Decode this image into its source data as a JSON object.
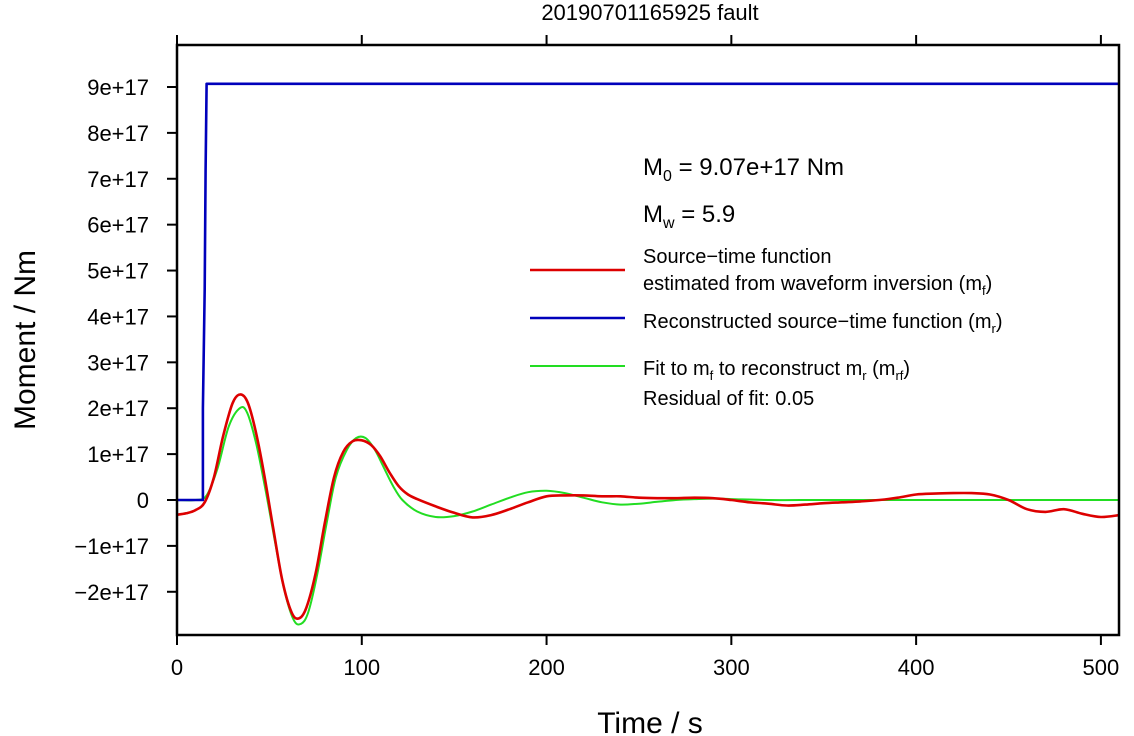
{
  "chart_data": {
    "type": "line",
    "title": "20190701165925 fault",
    "xlabel": "Time / s",
    "ylabel": "Moment / Nm",
    "xlim": [
      0,
      510
    ],
    "ylim": [
      -2.95e+17,
      9.95e+17
    ],
    "x_ticks": [
      0,
      100,
      200,
      300,
      400,
      500
    ],
    "x_tick_labels": [
      "0",
      "100",
      "200",
      "300",
      "400",
      "500"
    ],
    "y_ticks": [
      -2e+17,
      -1e+17,
      0,
      1e+17,
      2e+17,
      3e+17,
      4e+17,
      5e+17,
      6e+17,
      7e+17,
      8e+17,
      9e+17
    ],
    "y_tick_labels": [
      "−2e+17",
      "−1e+17",
      "0",
      "1e+17",
      "2e+17",
      "3e+17",
      "4e+17",
      "5e+17",
      "6e+17",
      "7e+17",
      "8e+17",
      "9e+17"
    ],
    "grid": false,
    "legend_position": "right",
    "annotations": {
      "m0": {
        "symbol": "M",
        "sub": "0",
        "text": " = 9.07e+17 Nm"
      },
      "mw": {
        "symbol": "M",
        "sub": "w",
        "text": " = 5.9"
      },
      "residual": "Residual of fit: 0.05"
    },
    "series": [
      {
        "key": "mf",
        "color": "#dd0000",
        "legend_lines": [
          {
            "text": "Source−time function"
          },
          {
            "text": "estimated from waveform inversion (m",
            "sub": "f",
            "after": ")"
          }
        ],
        "points": [
          [
            0,
            -0.32
          ],
          [
            5,
            -0.29
          ],
          [
            10,
            -0.22
          ],
          [
            15,
            -0.05
          ],
          [
            20,
            0.5
          ],
          [
            25,
            1.4
          ],
          [
            30,
            2.1
          ],
          [
            34,
            2.3
          ],
          [
            38,
            2.15
          ],
          [
            42,
            1.6
          ],
          [
            47,
            0.6
          ],
          [
            52,
            -0.6
          ],
          [
            57,
            -1.75
          ],
          [
            62,
            -2.45
          ],
          [
            66,
            -2.58
          ],
          [
            70,
            -2.35
          ],
          [
            75,
            -1.6
          ],
          [
            80,
            -0.5
          ],
          [
            85,
            0.5
          ],
          [
            90,
            1.05
          ],
          [
            95,
            1.28
          ],
          [
            100,
            1.3
          ],
          [
            105,
            1.2
          ],
          [
            110,
            0.95
          ],
          [
            115,
            0.6
          ],
          [
            120,
            0.3
          ],
          [
            125,
            0.12
          ],
          [
            130,
            0.02
          ],
          [
            140,
            -0.14
          ],
          [
            150,
            -0.28
          ],
          [
            160,
            -0.38
          ],
          [
            170,
            -0.33
          ],
          [
            180,
            -0.2
          ],
          [
            190,
            -0.05
          ],
          [
            200,
            0.08
          ],
          [
            210,
            0.1
          ],
          [
            220,
            0.1
          ],
          [
            230,
            0.08
          ],
          [
            240,
            0.08
          ],
          [
            250,
            0.05
          ],
          [
            260,
            0.04
          ],
          [
            270,
            0.04
          ],
          [
            280,
            0.05
          ],
          [
            290,
            0.04
          ],
          [
            300,
            0.0
          ],
          [
            310,
            -0.05
          ],
          [
            320,
            -0.08
          ],
          [
            330,
            -0.12
          ],
          [
            340,
            -0.1
          ],
          [
            350,
            -0.07
          ],
          [
            360,
            -0.05
          ],
          [
            370,
            -0.03
          ],
          [
            380,
            0.0
          ],
          [
            390,
            0.05
          ],
          [
            400,
            0.12
          ],
          [
            410,
            0.14
          ],
          [
            420,
            0.15
          ],
          [
            430,
            0.15
          ],
          [
            440,
            0.12
          ],
          [
            450,
            0.0
          ],
          [
            460,
            -0.2
          ],
          [
            470,
            -0.26
          ],
          [
            480,
            -0.2
          ],
          [
            490,
            -0.3
          ],
          [
            500,
            -0.37
          ],
          [
            510,
            -0.33
          ]
        ]
      },
      {
        "key": "mr",
        "color": "#0000bb",
        "legend_lines": [
          {
            "text": "Reconstructed source−time function (m",
            "sub": "r",
            "after": ")"
          }
        ],
        "points": [
          [
            0,
            0
          ],
          [
            14,
            0
          ],
          [
            14,
            2.0
          ],
          [
            15,
            4.6
          ],
          [
            15.5,
            7.2
          ],
          [
            16,
            9.07
          ],
          [
            510,
            9.07
          ]
        ]
      },
      {
        "key": "mrf",
        "color": "#22dd22",
        "legend_lines": [
          {
            "text": "Fit to m",
            "sub": "f",
            "mid": " to reconstruct m",
            "sub2": "r",
            "mid2": " (m",
            "sub3": "rf",
            "after": ")"
          }
        ],
        "points": [
          [
            0,
            0
          ],
          [
            10,
            0
          ],
          [
            16,
            0.1
          ],
          [
            22,
            0.7
          ],
          [
            28,
            1.6
          ],
          [
            34,
            2.0
          ],
          [
            38,
            1.9
          ],
          [
            43,
            1.2
          ],
          [
            48,
            0.2
          ],
          [
            53,
            -0.9
          ],
          [
            58,
            -1.95
          ],
          [
            63,
            -2.6
          ],
          [
            67,
            -2.7
          ],
          [
            71,
            -2.45
          ],
          [
            76,
            -1.6
          ],
          [
            81,
            -0.5
          ],
          [
            86,
            0.5
          ],
          [
            92,
            1.1
          ],
          [
            97,
            1.35
          ],
          [
            102,
            1.35
          ],
          [
            107,
            1.1
          ],
          [
            112,
            0.7
          ],
          [
            117,
            0.3
          ],
          [
            122,
            0.0
          ],
          [
            130,
            -0.25
          ],
          [
            140,
            -0.37
          ],
          [
            150,
            -0.35
          ],
          [
            160,
            -0.25
          ],
          [
            170,
            -0.1
          ],
          [
            180,
            0.05
          ],
          [
            190,
            0.17
          ],
          [
            200,
            0.2
          ],
          [
            210,
            0.15
          ],
          [
            220,
            0.05
          ],
          [
            230,
            -0.05
          ],
          [
            240,
            -0.1
          ],
          [
            250,
            -0.08
          ],
          [
            260,
            -0.04
          ],
          [
            270,
            0.0
          ],
          [
            280,
            0.02
          ],
          [
            290,
            0.03
          ],
          [
            300,
            0.02
          ],
          [
            320,
            0.0
          ],
          [
            350,
            0.0
          ],
          [
            400,
            0.0
          ],
          [
            510,
            0.0
          ]
        ]
      }
    ]
  }
}
